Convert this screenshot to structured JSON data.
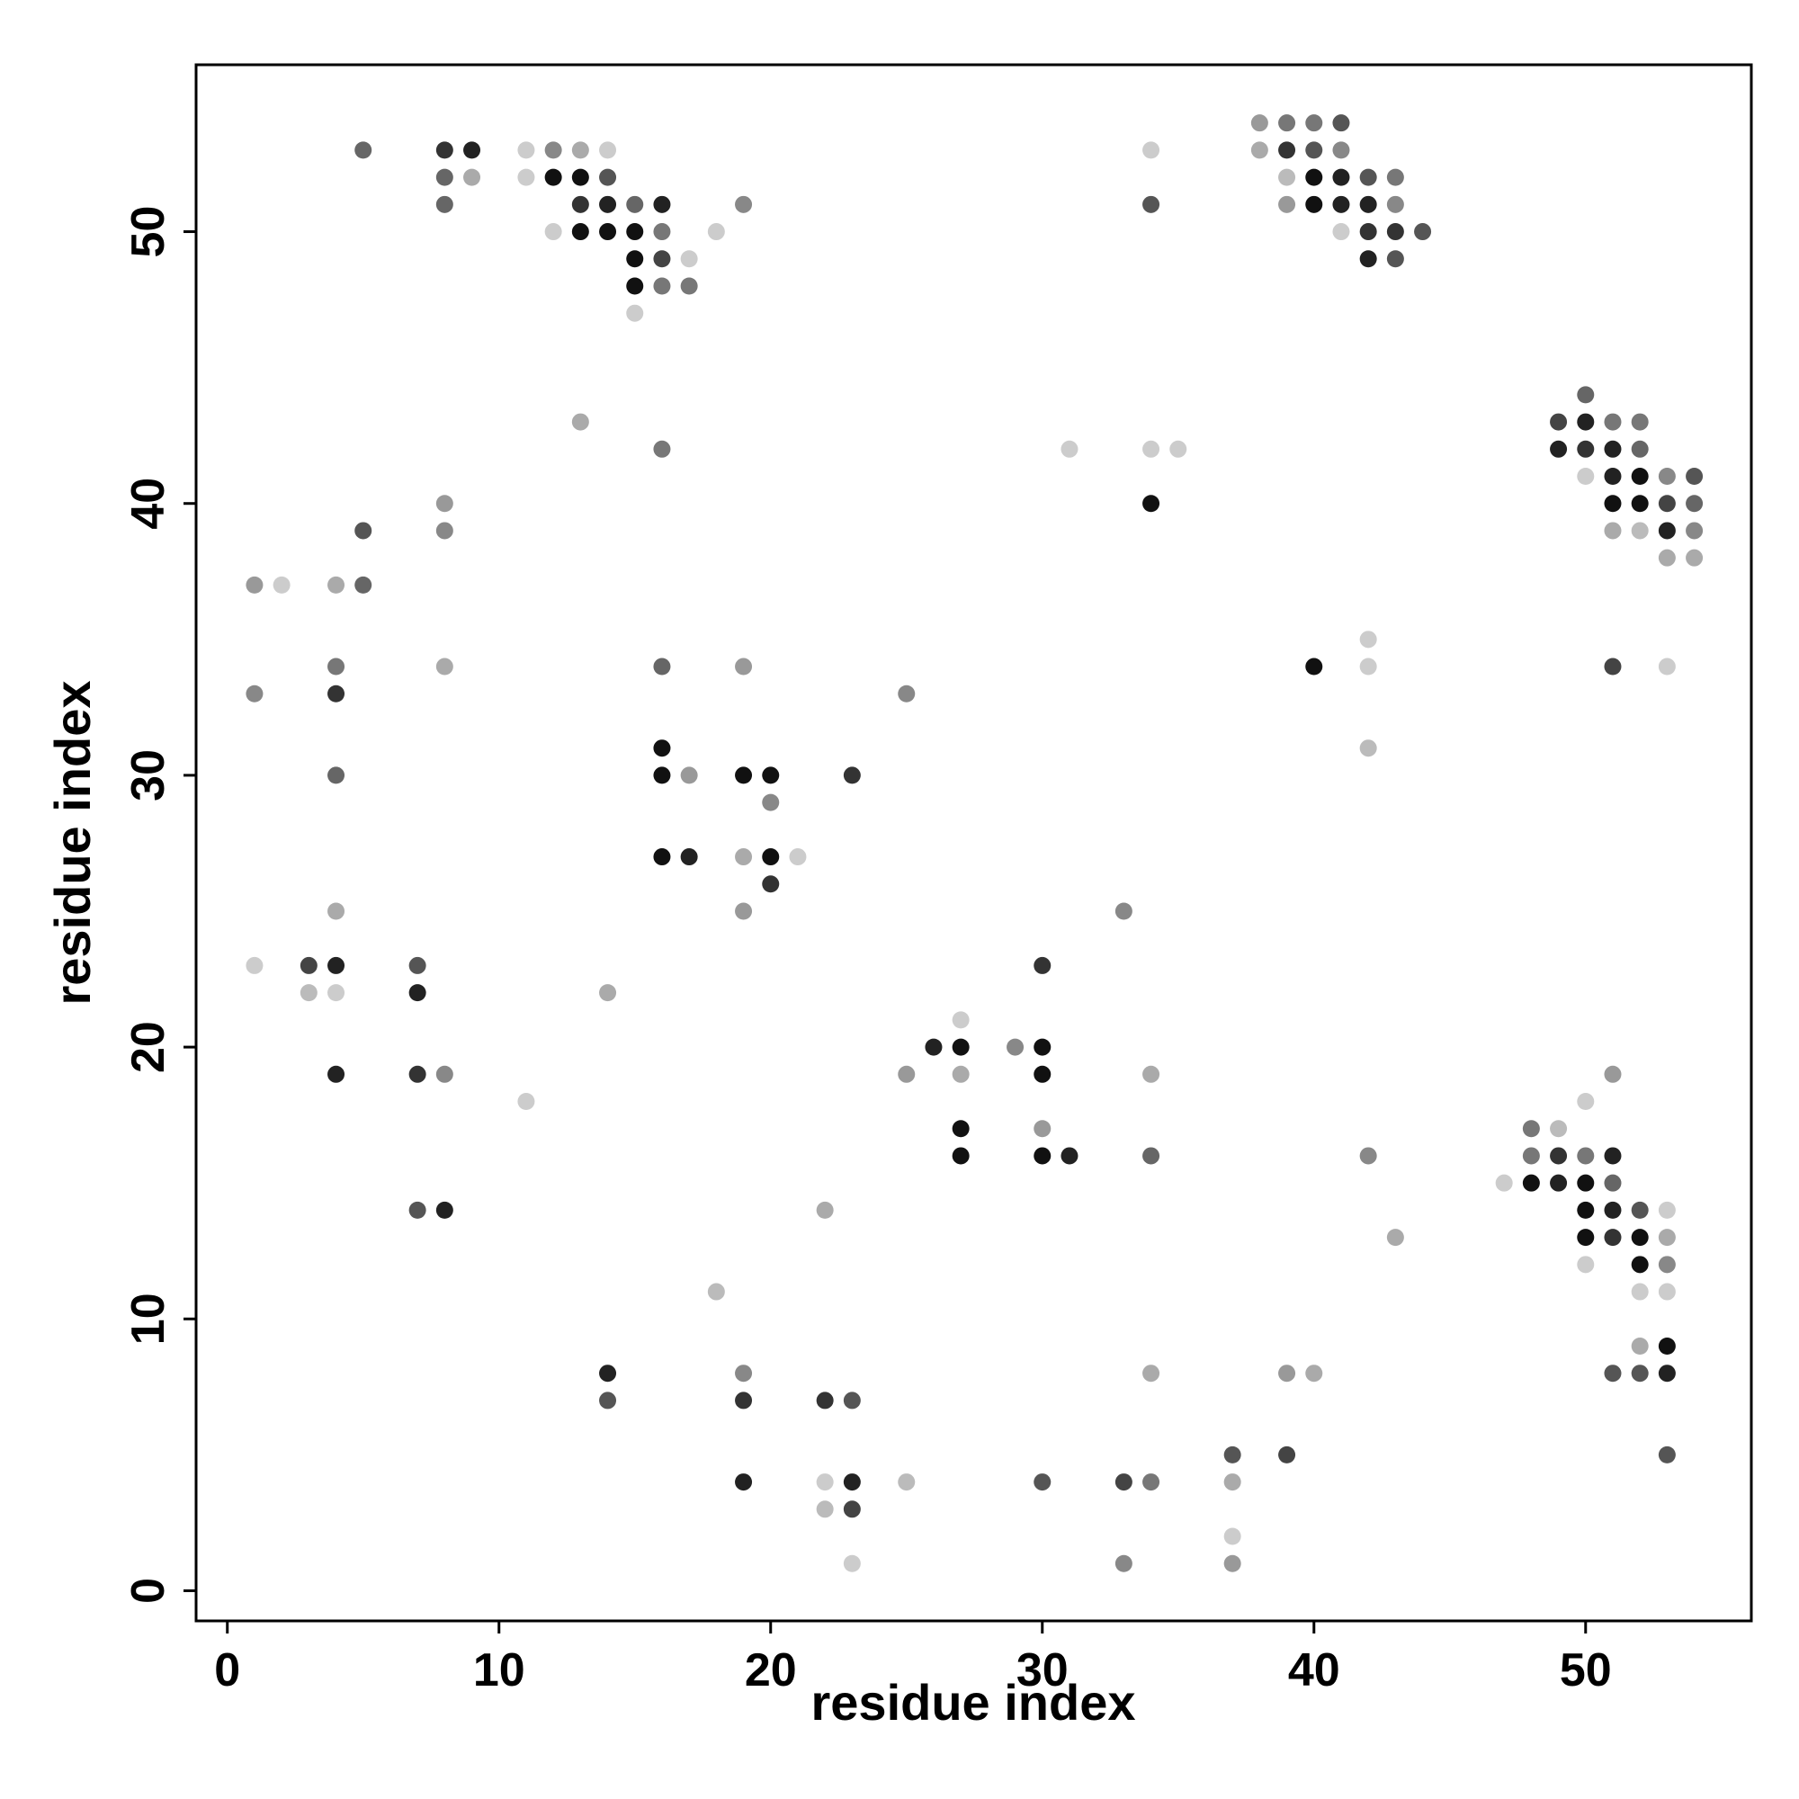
{
  "chart_data": {
    "type": "scatter",
    "xlabel": "residue index",
    "ylabel": "residue index",
    "xlim": [
      -1.15,
      56.1
    ],
    "ylim": [
      -1.11,
      56.14
    ],
    "xticks": [
      0,
      10,
      20,
      30,
      40,
      50
    ],
    "yticks": [
      0,
      10,
      20,
      30,
      40,
      50
    ],
    "x": [
      38,
      39,
      40,
      41,
      5,
      8,
      9,
      11,
      12,
      13,
      14,
      34,
      38,
      39,
      40,
      41,
      8,
      9,
      11,
      12,
      13,
      14,
      39,
      40,
      41,
      42,
      43,
      8,
      13,
      14,
      15,
      16,
      19,
      34,
      39,
      40,
      41,
      42,
      43,
      12,
      13,
      14,
      15,
      16,
      18,
      41,
      42,
      43,
      44,
      15,
      16,
      17,
      42,
      43,
      15,
      16,
      17,
      15,
      50,
      13,
      49,
      50,
      51,
      52,
      16,
      31,
      34,
      35,
      49,
      50,
      51,
      52,
      50,
      51,
      52,
      53,
      54,
      8,
      34,
      51,
      52,
      53,
      54,
      5,
      8,
      51,
      52,
      53,
      54,
      53,
      54,
      1,
      2,
      4,
      5,
      42,
      4,
      8,
      16,
      19,
      40,
      42,
      51,
      53,
      1,
      4,
      25,
      16,
      42,
      4,
      16,
      17,
      19,
      20,
      23,
      20,
      16,
      17,
      19,
      20,
      21,
      20,
      4,
      19,
      33,
      1,
      3,
      4,
      7,
      30,
      3,
      4,
      7,
      14,
      27,
      26,
      27,
      29,
      30,
      4,
      7,
      8,
      25,
      27,
      30,
      34,
      51,
      11,
      50,
      27,
      30,
      48,
      49,
      27,
      30,
      31,
      34,
      42,
      48,
      49,
      50,
      51,
      47,
      48,
      49,
      50,
      51,
      7,
      8,
      22,
      50,
      51,
      52,
      53,
      43,
      50,
      51,
      52,
      53,
      50,
      52,
      53,
      18,
      52,
      53,
      52,
      53,
      14,
      19,
      34,
      39,
      40,
      51,
      52,
      53,
      14,
      19,
      22,
      23,
      37,
      39,
      53,
      19,
      22,
      23,
      25,
      30,
      33,
      34,
      37,
      22,
      23,
      37,
      23,
      33,
      37
    ],
    "y": [
      54,
      54,
      54,
      54,
      53,
      53,
      53,
      53,
      53,
      53,
      53,
      53,
      53,
      53,
      53,
      53,
      52,
      52,
      52,
      52,
      52,
      52,
      52,
      52,
      52,
      52,
      52,
      51,
      51,
      51,
      51,
      51,
      51,
      51,
      51,
      51,
      51,
      51,
      51,
      50,
      50,
      50,
      50,
      50,
      50,
      50,
      50,
      50,
      50,
      49,
      49,
      49,
      49,
      49,
      48,
      48,
      48,
      47,
      44,
      43,
      43,
      43,
      43,
      43,
      42,
      42,
      42,
      42,
      42,
      42,
      42,
      42,
      41,
      41,
      41,
      41,
      41,
      40,
      40,
      40,
      40,
      40,
      40,
      39,
      39,
      39,
      39,
      39,
      39,
      38,
      38,
      37,
      37,
      37,
      37,
      35,
      34,
      34,
      34,
      34,
      34,
      34,
      34,
      34,
      33,
      33,
      33,
      31,
      31,
      30,
      30,
      30,
      30,
      30,
      30,
      29,
      27,
      27,
      27,
      27,
      27,
      26,
      25,
      25,
      25,
      23,
      23,
      23,
      23,
      23,
      22,
      22,
      22,
      22,
      21,
      20,
      20,
      20,
      20,
      19,
      19,
      19,
      19,
      19,
      19,
      19,
      19,
      18,
      18,
      17,
      17,
      17,
      17,
      16,
      16,
      16,
      16,
      16,
      16,
      16,
      16,
      16,
      15,
      15,
      15,
      15,
      15,
      14,
      14,
      14,
      14,
      14,
      14,
      14,
      13,
      13,
      13,
      13,
      13,
      12,
      12,
      12,
      11,
      11,
      11,
      9,
      9,
      8,
      8,
      8,
      8,
      8,
      8,
      8,
      8,
      7,
      7,
      7,
      7,
      5,
      5,
      5,
      4,
      4,
      4,
      4,
      4,
      4,
      4,
      4,
      3,
      3,
      2,
      1,
      1,
      1
    ],
    "colors": [
      "#999",
      "#777",
      "#777",
      "#555",
      "#666",
      "#333",
      "#222",
      "#ccc",
      "#888",
      "#aaa",
      "#ccc",
      "#ccc",
      "#aaa",
      "#333",
      "#555",
      "#888",
      "#666",
      "#aaa",
      "#ccc",
      "#111",
      "#111",
      "#555",
      "#bbb",
      "#111",
      "#222",
      "#555",
      "#777",
      "#666",
      "#333",
      "#222",
      "#666",
      "#222",
      "#888",
      "#555",
      "#999",
      "#111",
      "#222",
      "#222",
      "#888",
      "#ccc",
      "#111",
      "#111",
      "#111",
      "#777",
      "#ccc",
      "#ccc",
      "#333",
      "#333",
      "#555",
      "#111",
      "#444",
      "#ccc",
      "#222",
      "#555",
      "#111",
      "#777",
      "#777",
      "#ccc",
      "#666",
      "#aaa",
      "#444",
      "#222",
      "#777",
      "#777",
      "#777",
      "#ccc",
      "#ccc",
      "#ccc",
      "#222",
      "#333",
      "#222",
      "#666",
      "#ccc",
      "#222",
      "#111",
      "#888",
      "#555",
      "#999",
      "#111",
      "#111",
      "#111",
      "#444",
      "#666",
      "#555",
      "#888",
      "#aaa",
      "#bbb",
      "#222",
      "#888",
      "#aaa",
      "#aaa",
      "#999",
      "#ccc",
      "#aaa",
      "#666",
      "#ccc",
      "#777",
      "#aaa",
      "#666",
      "#999",
      "#111",
      "#ccc",
      "#444",
      "#ccc",
      "#888",
      "#333",
      "#888",
      "#111",
      "#bbb",
      "#666",
      "#111",
      "#999",
      "#111",
      "#111",
      "#333",
      "#888",
      "#111",
      "#222",
      "#aaa",
      "#111",
      "#ccc",
      "#333",
      "#aaa",
      "#999",
      "#888",
      "#ccc",
      "#444",
      "#222",
      "#555",
      "#333",
      "#bbb",
      "#ccc",
      "#222",
      "#aaa",
      "#ccc",
      "#222",
      "#111",
      "#888",
      "#111",
      "#222",
      "#333",
      "#888",
      "#999",
      "#aaa",
      "#111",
      "#aaa",
      "#999",
      "#ccc",
      "#ccc",
      "#111",
      "#999",
      "#777",
      "#bbb",
      "#111",
      "#111",
      "#222",
      "#666",
      "#888",
      "#777",
      "#333",
      "#777",
      "#222",
      "#ccc",
      "#111",
      "#222",
      "#111",
      "#666",
      "#555",
      "#222",
      "#aaa",
      "#111",
      "#222",
      "#555",
      "#ccc",
      "#aaa",
      "#111",
      "#333",
      "#111",
      "#aaa",
      "#ccc",
      "#111",
      "#888",
      "#bbb",
      "#ccc",
      "#ccc",
      "#aaa",
      "#111",
      "#222",
      "#888",
      "#aaa",
      "#999",
      "#aaa",
      "#555",
      "#555",
      "#222",
      "#555",
      "#333",
      "#333",
      "#555",
      "#555",
      "#444",
      "#555",
      "#222",
      "#ccc",
      "#222",
      "#bbb",
      "#555",
      "#444",
      "#777",
      "#aaa",
      "#bbb",
      "#444",
      "#ccc",
      "#ccc",
      "#888",
      "#999"
    ]
  }
}
